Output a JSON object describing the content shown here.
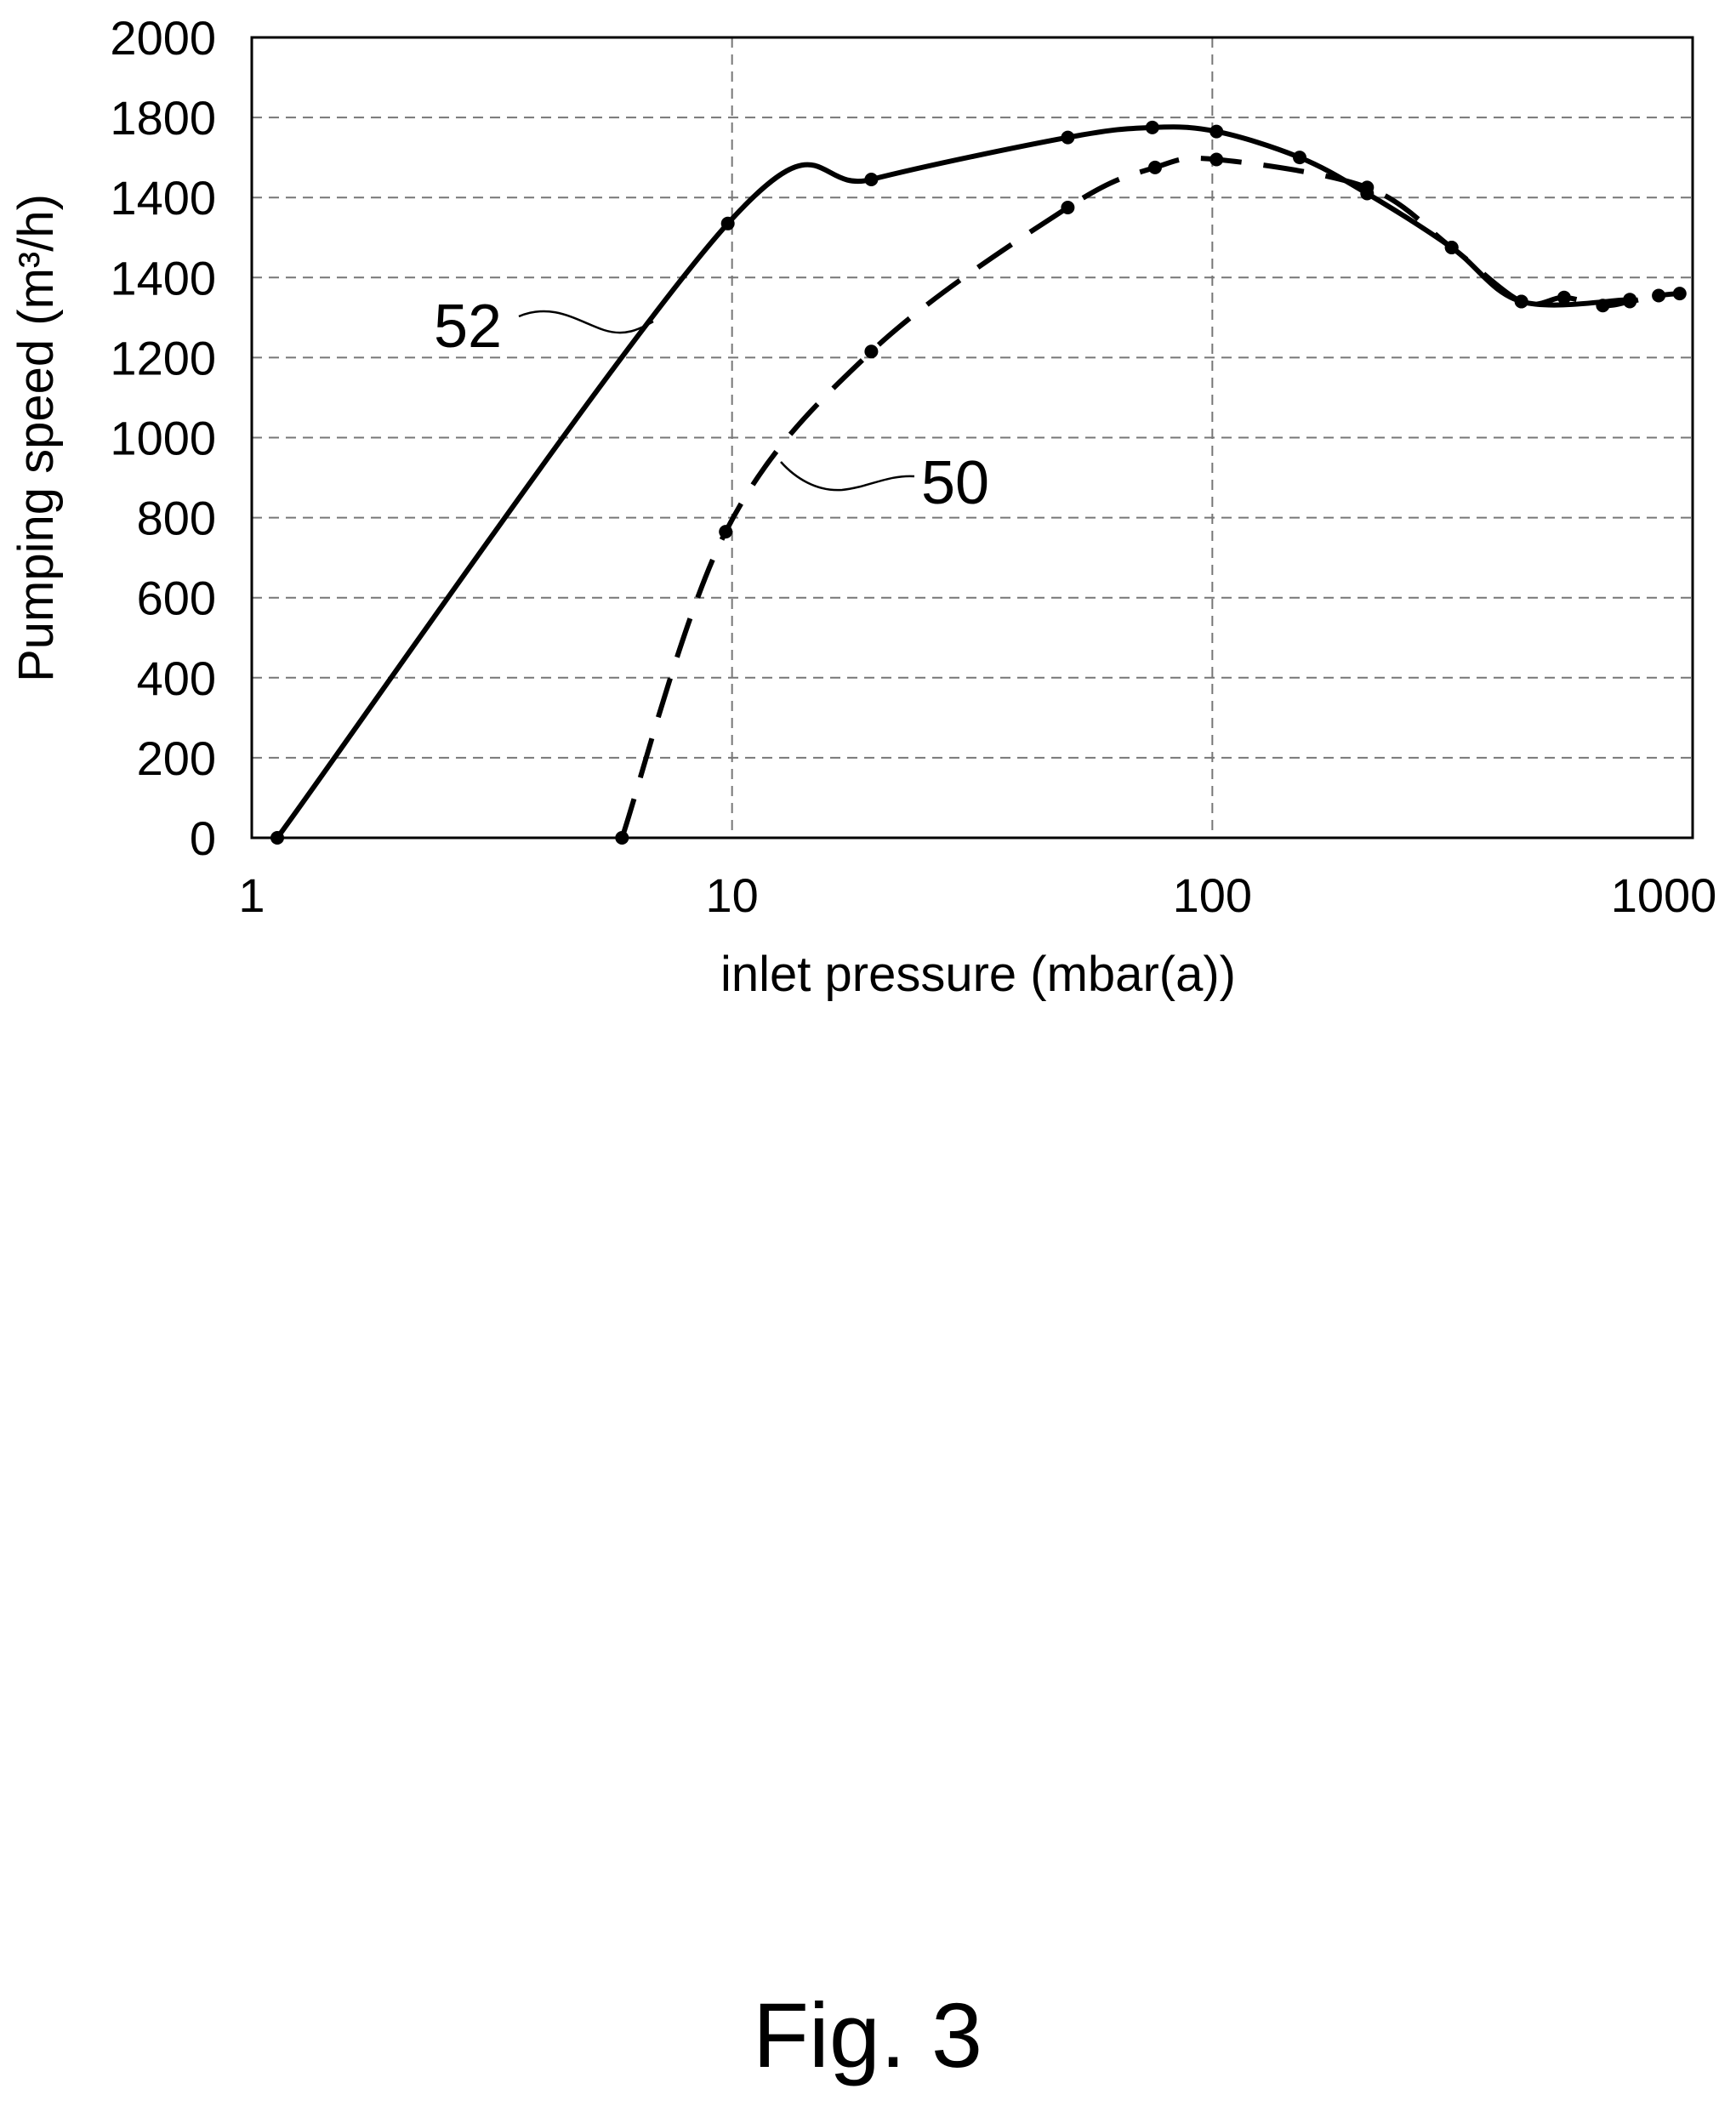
{
  "figure": {
    "caption": "Fig. 3"
  },
  "chart_data": {
    "type": "line",
    "xlabel": "inlet pressure (mbar(a))",
    "ylabel": "Pumping speed (m³/h)",
    "xscale": "log",
    "xlim": [
      1,
      1000
    ],
    "ylim": [
      0,
      2000
    ],
    "grid": true,
    "x_ticks": [
      "1",
      "10",
      "100",
      "1000"
    ],
    "y_ticks": [
      "0",
      "200",
      "400",
      "600",
      "800",
      "1000",
      "1200",
      "1400",
      "1400",
      "1800",
      "2000"
    ],
    "series": [
      {
        "name": "52",
        "style": "solid",
        "color": "#000000",
        "x": [
          1.13,
          9.8,
          19.5,
          50,
          75,
          102,
          152,
          210,
          315,
          440,
          740
        ],
        "y": [
          0,
          1535,
          1645,
          1750,
          1775,
          1765,
          1700,
          1610,
          1475,
          1340,
          1345
        ]
      },
      {
        "name": "50",
        "style": "dashed",
        "color": "#000000",
        "x": [
          5.9,
          9.7,
          19.5,
          50,
          76,
          102,
          210,
          315,
          440,
          540,
          650,
          740,
          850,
          940
        ],
        "y": [
          0,
          765,
          1215,
          1575,
          1675,
          1695,
          1625,
          1475,
          1340,
          1350,
          1330,
          1340,
          1355,
          1360
        ]
      }
    ]
  }
}
